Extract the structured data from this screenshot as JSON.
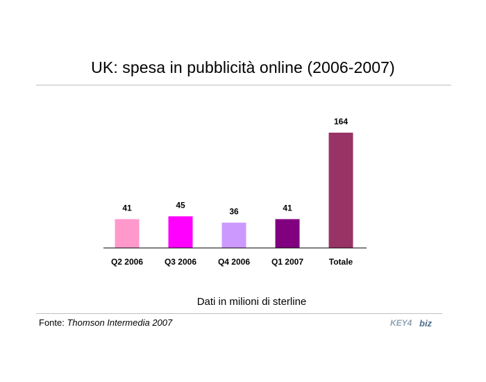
{
  "title": "UK: spesa in pubblicità online (2006-2007)",
  "caption": "Dati in milioni di sterline",
  "source": {
    "label": "Fonte:",
    "name": "Thomson Intermedia 2007"
  },
  "logo": {
    "text_key": "KEY4",
    "text_biz": "biz"
  },
  "chart_data": {
    "type": "bar",
    "title": "",
    "xlabel": "",
    "ylabel": "",
    "categories": [
      "Q2 2006",
      "Q3 2006",
      "Q4 2006",
      "Q1 2007",
      "Totale"
    ],
    "values": [
      41,
      45,
      36,
      41,
      164
    ],
    "value_labels": [
      "41",
      "45",
      "36",
      "41",
      "164"
    ],
    "colors": [
      "#ff99cc",
      "#ff00ff",
      "#cc99ff",
      "#800080",
      "#993366"
    ],
    "ylim": [
      0,
      164
    ],
    "grid": false,
    "legend": "none"
  }
}
